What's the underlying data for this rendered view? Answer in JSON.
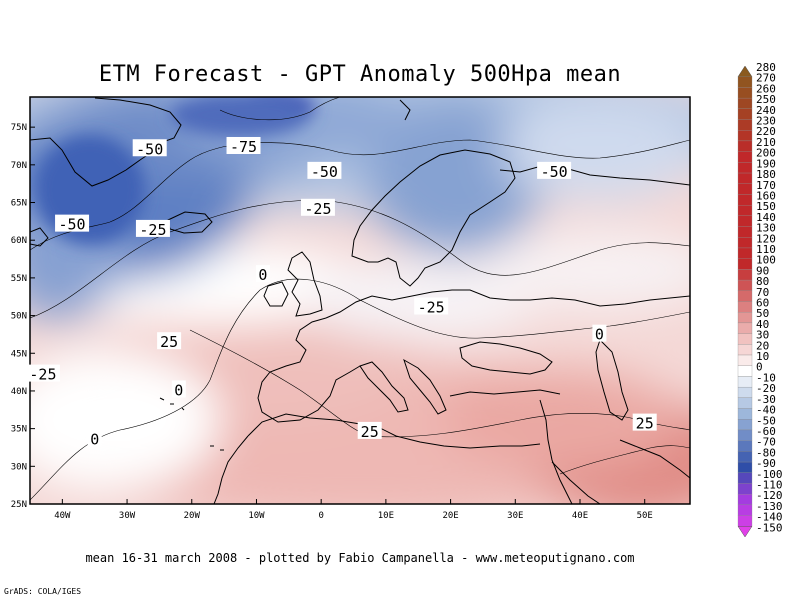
{
  "title": "ETM Forecast - GPT Anomaly 500Hpa mean",
  "footer": "mean 16-31 march 2008 - plotted by Fabio Campanella - www.meteoputignano.com",
  "credit": "GrADS: COLA/IGES",
  "map": {
    "lon_range": [
      -45,
      57
    ],
    "lat_range": [
      25,
      79
    ],
    "lon_ticks": [
      {
        "value": -40,
        "label": "40W"
      },
      {
        "value": -30,
        "label": "30W"
      },
      {
        "value": -20,
        "label": "20W"
      },
      {
        "value": -10,
        "label": "10W"
      },
      {
        "value": 0,
        "label": "0"
      },
      {
        "value": 10,
        "label": "10E"
      },
      {
        "value": 20,
        "label": "20E"
      },
      {
        "value": 30,
        "label": "30E"
      },
      {
        "value": 40,
        "label": "40E"
      },
      {
        "value": 50,
        "label": "50E"
      }
    ],
    "lat_ticks": [
      {
        "value": 25,
        "label": "25N"
      },
      {
        "value": 30,
        "label": "30N"
      },
      {
        "value": 35,
        "label": "35N"
      },
      {
        "value": 40,
        "label": "40N"
      },
      {
        "value": 45,
        "label": "45N"
      },
      {
        "value": 50,
        "label": "50N"
      },
      {
        "value": 55,
        "label": "55N"
      },
      {
        "value": 60,
        "label": "60N"
      },
      {
        "value": 65,
        "label": "65N"
      },
      {
        "value": 70,
        "label": "70N"
      },
      {
        "value": 75,
        "label": "75N"
      }
    ],
    "contour_labels": [
      {
        "text": "-50",
        "lon": -26.5,
        "lat": 72.2
      },
      {
        "text": "-75",
        "lon": -12,
        "lat": 72.5
      },
      {
        "text": "-50",
        "lon": 0.5,
        "lat": 69.2
      },
      {
        "text": "-50",
        "lon": 36,
        "lat": 69.2
      },
      {
        "text": "-25",
        "lon": -0.5,
        "lat": 64.3
      },
      {
        "text": "-50",
        "lon": -38.5,
        "lat": 62.2
      },
      {
        "text": "-25",
        "lon": -26,
        "lat": 61.5
      },
      {
        "text": "0",
        "lon": -9,
        "lat": 55.5
      },
      {
        "text": "-25",
        "lon": 17,
        "lat": 51.2
      },
      {
        "text": "0",
        "lon": 43,
        "lat": 47.6
      },
      {
        "text": "25",
        "lon": -23.5,
        "lat": 46.6
      },
      {
        "text": "-25",
        "lon": -43,
        "lat": 42.3
      },
      {
        "text": "0",
        "lon": -22,
        "lat": 40.2
      },
      {
        "text": "25",
        "lon": 7.5,
        "lat": 34.7
      },
      {
        "text": "25",
        "lon": 50,
        "lat": 35.8
      },
      {
        "text": "0",
        "lon": -35,
        "lat": 33.7
      }
    ]
  },
  "colorbar": {
    "labels": [
      "280",
      "270",
      "260",
      "250",
      "240",
      "230",
      "220",
      "210",
      "200",
      "190",
      "180",
      "170",
      "160",
      "150",
      "140",
      "130",
      "120",
      "110",
      "100",
      "90",
      "80",
      "70",
      "60",
      "50",
      "40",
      "30",
      "20",
      "10",
      "0",
      "-10",
      "-20",
      "-30",
      "-40",
      "-50",
      "-60",
      "-70",
      "-80",
      "-90",
      "-100",
      "-110",
      "-120",
      "-130",
      "-140",
      "-150"
    ],
    "colors": {
      "high_brown": "#8a5a1e",
      "high_red": "#c0282a",
      "mid_pink": "#f1c2c0",
      "zero_white": "#ffffff",
      "mid_blue": "#9db7db",
      "deep_blue": "#2f4ea8",
      "low_violet": "#a43ce0",
      "low_magenta": "#e040e8"
    }
  }
}
